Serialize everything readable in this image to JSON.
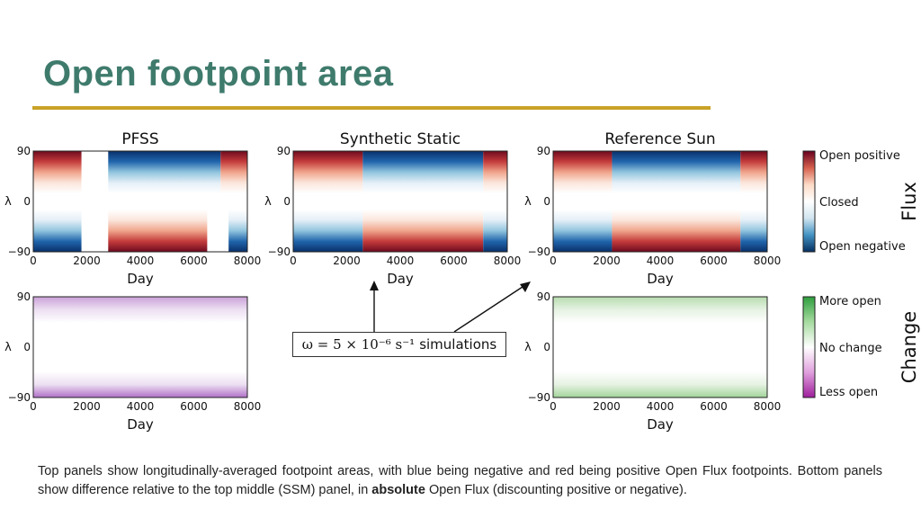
{
  "slide": {
    "title": "Open footpoint area",
    "callout_math": "ω = 5 × 10⁻⁶ s⁻¹",
    "callout_text": "simulations",
    "caption_before": "Top panels show longitudinally-averaged footpoint areas, with blue being negative and red being positive Open Flux footpoints. Bottom panels show difference relative to the top middle (SSM) panel, in ",
    "caption_emphasis": "absolute",
    "caption_after": " Open Flux (discounting positive or negative)."
  },
  "chart_data": [
    {
      "type": "heatmap",
      "id": "pfss",
      "title": "PFSS",
      "xlabel": "Day",
      "ylabel": "λ",
      "xlim": [
        0,
        8000
      ],
      "ylim": [
        -90,
        90
      ],
      "xticks": [
        "0",
        "2000",
        "4000",
        "6000",
        "8000"
      ],
      "yticks": [
        "90",
        "0",
        "−90"
      ],
      "colorscale": "flux",
      "regions": [
        {
          "state": "open positive",
          "lat": "north",
          "days": [
            0,
            1800
          ]
        },
        {
          "state": "open negative",
          "lat": "north",
          "days": [
            2800,
            7000
          ]
        },
        {
          "state": "open positive",
          "lat": "north",
          "days": [
            7000,
            8000
          ]
        },
        {
          "state": "open negative",
          "lat": "south",
          "days": [
            0,
            1800
          ]
        },
        {
          "state": "open positive",
          "lat": "south",
          "days": [
            2800,
            6500
          ]
        },
        {
          "state": "open negative",
          "lat": "south",
          "days": [
            7300,
            8000
          ]
        }
      ]
    },
    {
      "type": "heatmap",
      "id": "synthetic-static",
      "title": "Synthetic Static",
      "xlabel": "Day",
      "ylabel": "λ",
      "xlim": [
        0,
        8000
      ],
      "ylim": [
        -90,
        90
      ],
      "xticks": [
        "0",
        "2000",
        "4000",
        "6000",
        "8000"
      ],
      "yticks": [
        "90",
        "0",
        "−90"
      ],
      "colorscale": "flux",
      "regions": [
        {
          "state": "open positive",
          "lat": "north",
          "days": [
            0,
            2600
          ]
        },
        {
          "state": "open negative",
          "lat": "north",
          "days": [
            2600,
            7100
          ]
        },
        {
          "state": "open positive",
          "lat": "north",
          "days": [
            7100,
            8000
          ]
        },
        {
          "state": "open negative",
          "lat": "south",
          "days": [
            0,
            2600
          ]
        },
        {
          "state": "open positive",
          "lat": "south",
          "days": [
            2600,
            7100
          ]
        },
        {
          "state": "open negative",
          "lat": "south",
          "days": [
            7100,
            8000
          ]
        }
      ]
    },
    {
      "type": "heatmap",
      "id": "reference-sun",
      "title": "Reference Sun",
      "xlabel": "Day",
      "ylabel": "λ",
      "xlim": [
        0,
        8000
      ],
      "ylim": [
        -90,
        90
      ],
      "xticks": [
        "0",
        "2000",
        "4000",
        "6000",
        "8000"
      ],
      "yticks": [
        "90",
        "0",
        "−90"
      ],
      "colorscale": "flux",
      "regions": [
        {
          "state": "open positive",
          "lat": "north",
          "days": [
            0,
            2200
          ]
        },
        {
          "state": "open negative",
          "lat": "north",
          "days": [
            2200,
            7000
          ]
        },
        {
          "state": "open positive",
          "lat": "north",
          "days": [
            7000,
            8000
          ]
        },
        {
          "state": "open negative",
          "lat": "south",
          "days": [
            0,
            2200
          ]
        },
        {
          "state": "open positive",
          "lat": "south",
          "days": [
            2200,
            7000
          ]
        },
        {
          "state": "open negative",
          "lat": "south",
          "days": [
            7000,
            8000
          ]
        }
      ]
    },
    {
      "type": "heatmap",
      "id": "pfss-difference",
      "title": "",
      "xlabel": "Day",
      "ylabel": "λ",
      "xlim": [
        0,
        8000
      ],
      "ylim": [
        -90,
        90
      ],
      "xticks": [
        "0",
        "2000",
        "4000",
        "6000",
        "8000"
      ],
      "yticks": [
        "90",
        "0",
        "−90"
      ],
      "colorscale": "change",
      "regions": [
        {
          "state": "less open",
          "lat": "north",
          "days": [
            0,
            8000
          ]
        },
        {
          "state": "less open",
          "lat": "south",
          "days": [
            0,
            8000
          ]
        }
      ]
    },
    {
      "type": "heatmap",
      "id": "reference-sun-difference",
      "title": "",
      "xlabel": "Day",
      "ylabel": "λ",
      "xlim": [
        0,
        8000
      ],
      "ylim": [
        -90,
        90
      ],
      "xticks": [
        "0",
        "2000",
        "4000",
        "6000",
        "8000"
      ],
      "yticks": [
        "90",
        "0",
        "−90"
      ],
      "colorscale": "change",
      "regions": [
        {
          "state": "more open",
          "lat": "north",
          "days": [
            0,
            8000
          ]
        },
        {
          "state": "more open",
          "lat": "south",
          "days": [
            0,
            8000
          ]
        }
      ]
    }
  ],
  "colorbars": [
    {
      "id": "flux",
      "label": "Flux",
      "ticks": [
        "Open positive",
        "Closed",
        "Open negative"
      ],
      "colors": [
        "#67001f",
        "#d6604d",
        "#fddbc7",
        "#ffffff",
        "#d1e5f0",
        "#4393c3",
        "#053061"
      ]
    },
    {
      "id": "change",
      "label": "Change",
      "ticks": [
        "More open",
        "No change",
        "Less open"
      ],
      "colors": [
        "#2e9e3e",
        "#a6dba0",
        "#ffffff",
        "#e0a0dd",
        "#9e1f9c"
      ]
    }
  ]
}
